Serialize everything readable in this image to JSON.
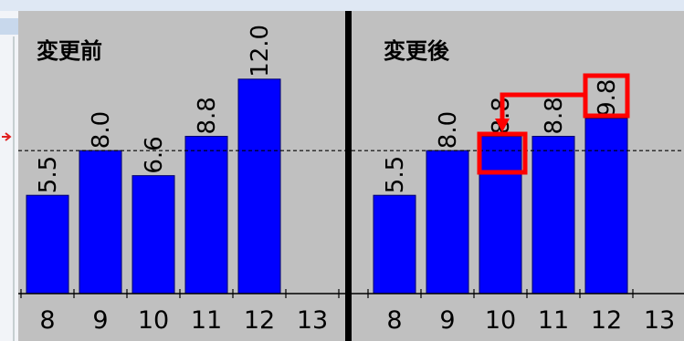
{
  "chart_data": [
    {
      "type": "bar",
      "title": "変更前",
      "categories": [
        "8",
        "9",
        "10",
        "11",
        "12",
        "13"
      ],
      "values": [
        5.5,
        8.0,
        6.6,
        8.8,
        12.0,
        null
      ],
      "value_labels": [
        "5.5",
        "8.0",
        "6.6",
        "8.8",
        "12.0",
        null
      ],
      "color": "#0000ff",
      "ylim": [
        0,
        16
      ],
      "reference_line": 8.0
    },
    {
      "type": "bar",
      "title": "変更後",
      "categories": [
        "8",
        "9",
        "10",
        "11",
        "12",
        "13"
      ],
      "values": [
        5.5,
        8.0,
        8.8,
        8.8,
        9.8,
        null
      ],
      "value_labels": [
        "5.5",
        "8.0",
        "8.8",
        "8.8",
        "9.8",
        null
      ],
      "color": "#0000ff",
      "ylim": [
        0,
        16
      ],
      "reference_line": 8.0
    }
  ]
}
